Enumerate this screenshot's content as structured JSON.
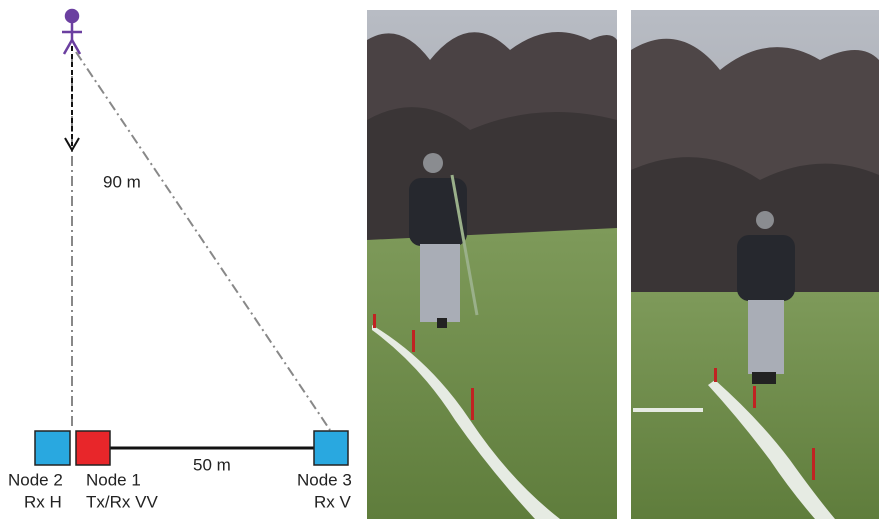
{
  "annotations": {
    "distance_90": "90 m",
    "distance_50": "50 m"
  },
  "nodes": [
    {
      "name": "Node 2",
      "role": "Rx H"
    },
    {
      "name": "Node 1",
      "role": "Tx/Rx VV"
    },
    {
      "name": "Node 3",
      "role": "Rx V"
    }
  ]
}
